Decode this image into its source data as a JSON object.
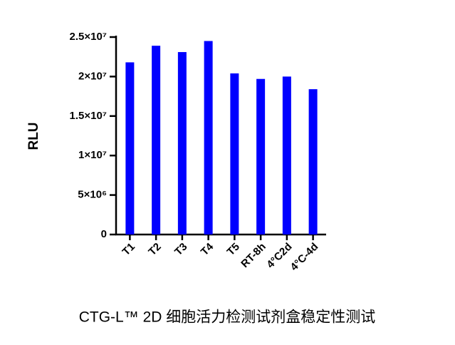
{
  "chart_data": {
    "type": "bar",
    "title": "CTG-L™ 2D 细胞活力检测试剂盒稳定性测试",
    "y_label": "RLU",
    "categories": [
      "T1",
      "T2",
      "T3",
      "T4",
      "T5",
      "RT-8h",
      "4°C2d",
      "4°C-4d"
    ],
    "values": [
      21800000,
      23900000,
      23100000,
      24500000,
      20400000,
      19700000,
      20000000,
      18400000
    ],
    "color": "#0000ff",
    "ylim": [
      0,
      25000000
    ],
    "yticks": [
      0,
      {
        "value": 5000000,
        "label": "5×10⁶"
      },
      {
        "value": 10000000,
        "label": "1×10⁷"
      },
      {
        "value": 15000000,
        "label": "1.5×10⁷"
      },
      {
        "value": 20000000,
        "label": "2×10⁷"
      },
      {
        "value": 25000000,
        "label": "2.5×10⁷"
      }
    ],
    "grid": false
  }
}
